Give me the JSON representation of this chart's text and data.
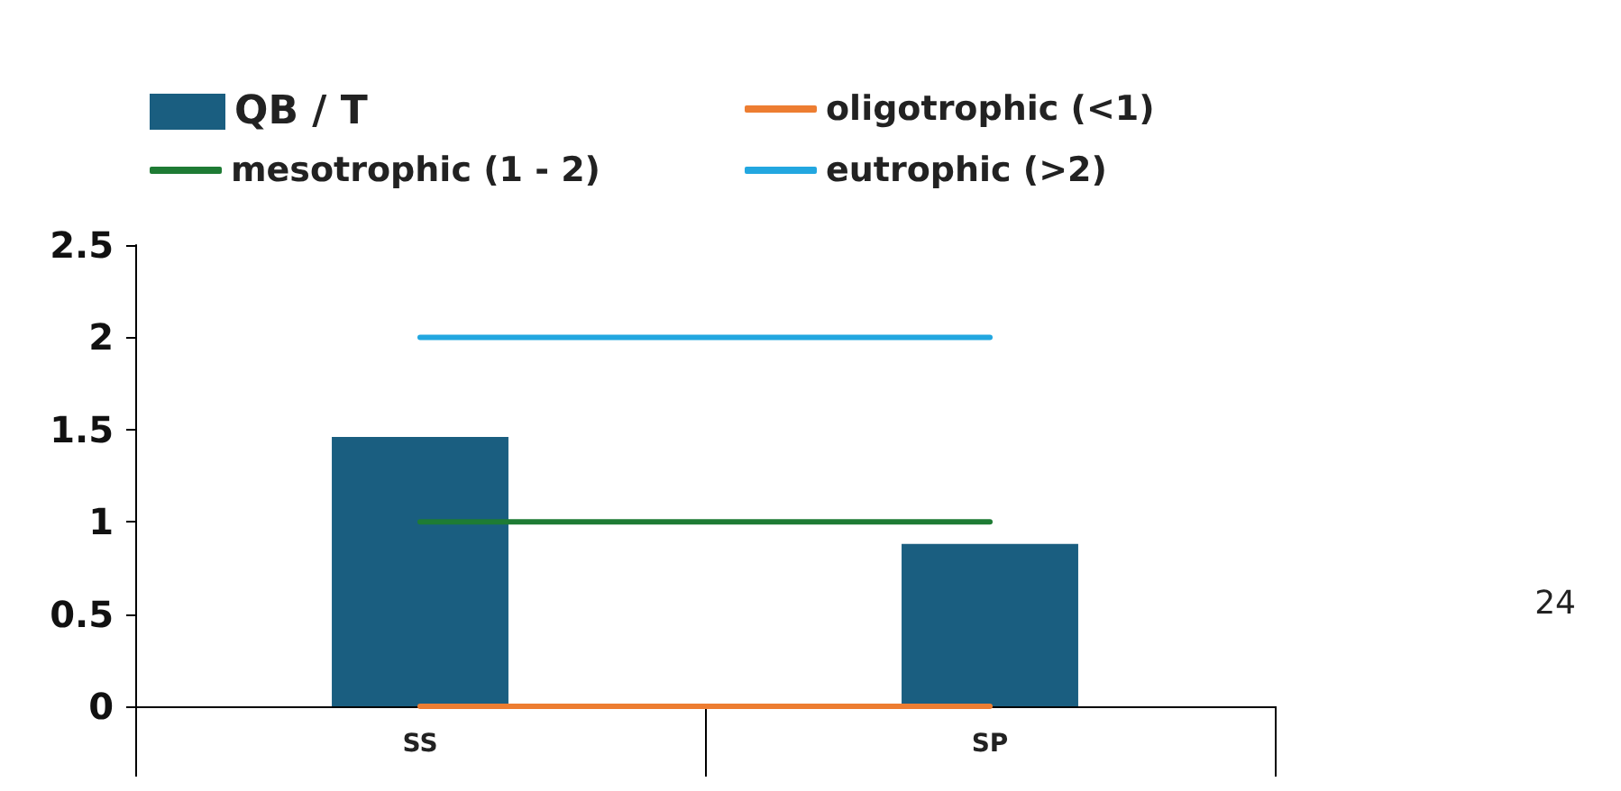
{
  "chart_data": {
    "type": "bar",
    "categories": [
      "SS",
      "SP"
    ],
    "series": [
      {
        "name": "QB / T",
        "color": "#1a5e80",
        "values": [
          1.46,
          0.88
        ]
      },
      {
        "name": "oligotrophic (<1)",
        "type": "line",
        "color": "#ed7d31",
        "values": [
          0,
          0
        ]
      },
      {
        "name": "mesotrophic (1 - 2)",
        "type": "line",
        "color": "#1e7b34",
        "values": [
          1,
          1
        ]
      },
      {
        "name": "eutrophic (>2)",
        "type": "line",
        "color": "#22a7e0",
        "values": [
          2,
          2
        ]
      }
    ],
    "ylim": [
      0,
      2.5
    ],
    "yticks": [
      0,
      0.5,
      1,
      1.5,
      2,
      2.5
    ],
    "grid": false,
    "legend": "top left",
    "marker": "none",
    "line_style": "solid",
    "annotations": [
      "24"
    ]
  }
}
